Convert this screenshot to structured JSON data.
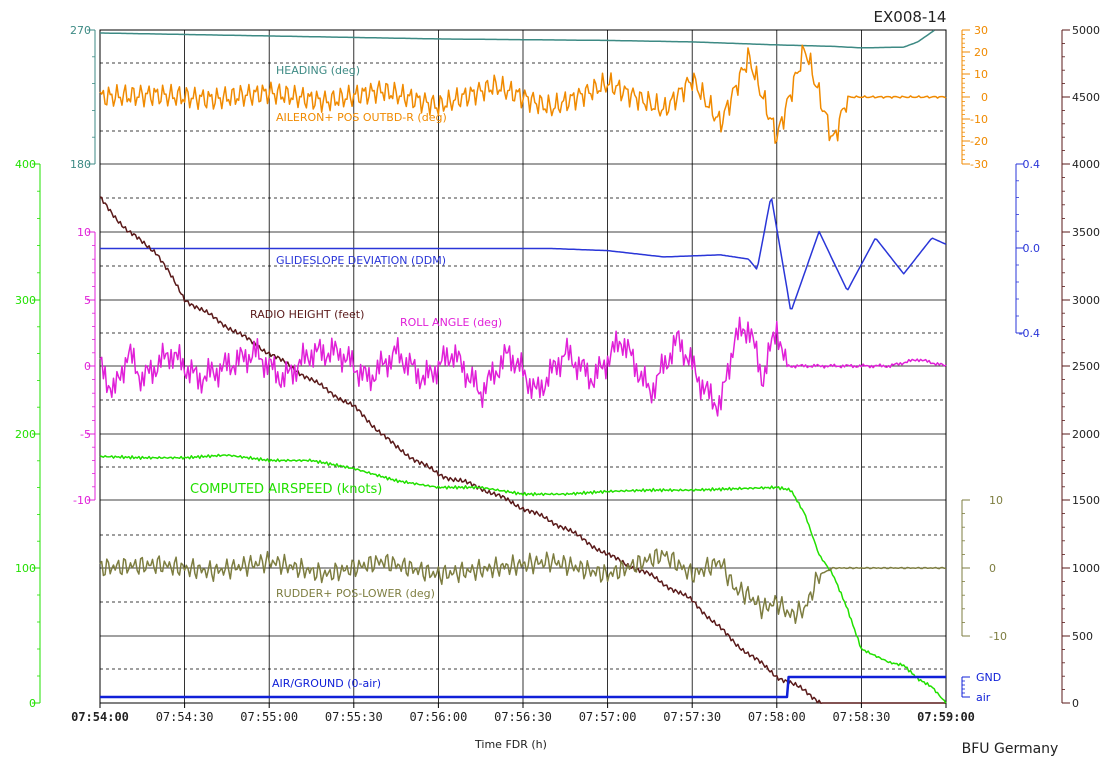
{
  "doc_id": "EX008-14",
  "footer": {
    "xlabel": "Time FDR (h)",
    "source": "BFU Germany"
  },
  "chart_data": {
    "type": "line",
    "x_ticks": [
      "07:54:00",
      "07:54:30",
      "07:55:00",
      "07:55:30",
      "07:56:00",
      "07:56:30",
      "07:57:00",
      "07:57:30",
      "07:58:00",
      "07:58:30",
      "07:59:00"
    ],
    "x_range_seconds": [
      0,
      300
    ],
    "series": [
      {
        "key": "heading",
        "name": "HEADING (deg)",
        "color": "#3d8a84",
        "axis_ticks": [
          "270",
          "180"
        ],
        "range": [
          180,
          270
        ],
        "points": [
          [
            0,
            268
          ],
          [
            15,
            267.5
          ],
          [
            30,
            267
          ],
          [
            60,
            266
          ],
          [
            90,
            265
          ],
          [
            120,
            264
          ],
          [
            150,
            263.5
          ],
          [
            180,
            263
          ],
          [
            210,
            262
          ],
          [
            240,
            260
          ],
          [
            260,
            259
          ],
          [
            270,
            258
          ],
          [
            285,
            258.5
          ],
          [
            290,
            262
          ],
          [
            296,
            270
          ]
        ]
      },
      {
        "key": "aileron",
        "name": "AILERON+ POS OUTBD-R (deg)",
        "color": "#f08a00",
        "axis_ticks": [
          "30",
          "20",
          "10",
          "0",
          "-10",
          "-20",
          "-30"
        ],
        "range": [
          -30,
          30
        ],
        "points": [
          [
            0,
            0
          ],
          [
            20,
            1
          ],
          [
            40,
            -1
          ],
          [
            60,
            2
          ],
          [
            80,
            -2
          ],
          [
            100,
            3
          ],
          [
            120,
            -4
          ],
          [
            140,
            5
          ],
          [
            160,
            -5
          ],
          [
            180,
            6
          ],
          [
            200,
            -6
          ],
          [
            210,
            8
          ],
          [
            220,
            -12
          ],
          [
            230,
            18
          ],
          [
            240,
            -18
          ],
          [
            250,
            22
          ],
          [
            260,
            -20
          ],
          [
            265,
            0
          ],
          [
            280,
            0
          ],
          [
            300,
            0
          ]
        ]
      },
      {
        "key": "glideslope",
        "name": "GLIDESLOPE DEVIATION (DDM)",
        "color": "#2a36d8",
        "axis_ticks": [
          "0.4",
          "0.0",
          "-0.4"
        ],
        "range": [
          -0.4,
          0.4
        ],
        "points": [
          [
            0,
            0.0
          ],
          [
            60,
            0.0
          ],
          [
            120,
            0.0
          ],
          [
            160,
            0.0
          ],
          [
            180,
            -0.01
          ],
          [
            200,
            -0.04
          ],
          [
            220,
            -0.03
          ],
          [
            230,
            -0.05
          ],
          [
            233,
            -0.1
          ],
          [
            238,
            0.25
          ],
          [
            245,
            -0.3
          ],
          [
            255,
            0.08
          ],
          [
            265,
            -0.2
          ],
          [
            275,
            0.05
          ],
          [
            285,
            -0.12
          ],
          [
            295,
            0.05
          ],
          [
            300,
            0.02
          ]
        ]
      },
      {
        "key": "radio_height",
        "name": "RADIO HEIGHT (feet)",
        "color": "#5a1a1a",
        "axis_ticks": [
          "5000",
          "4500",
          "4000",
          "3500",
          "3000",
          "2500",
          "2000",
          "1500",
          "1000",
          "500",
          "0"
        ],
        "range": [
          0,
          5000
        ],
        "points": [
          [
            0,
            3750
          ],
          [
            10,
            3500
          ],
          [
            20,
            3350
          ],
          [
            30,
            3000
          ],
          [
            45,
            2800
          ],
          [
            60,
            2600
          ],
          [
            75,
            2400
          ],
          [
            90,
            2200
          ],
          [
            105,
            1900
          ],
          [
            120,
            1700
          ],
          [
            135,
            1600
          ],
          [
            150,
            1450
          ],
          [
            165,
            1300
          ],
          [
            180,
            1100
          ],
          [
            195,
            950
          ],
          [
            210,
            760
          ],
          [
            225,
            450
          ],
          [
            240,
            200
          ],
          [
            250,
            90
          ],
          [
            256,
            0
          ],
          [
            260,
            0
          ],
          [
            300,
            0
          ]
        ]
      },
      {
        "key": "roll",
        "name": "ROLL ANGLE (deg)",
        "color": "#e020d8",
        "axis_ticks": [
          "10",
          "5",
          "0",
          "-5",
          "-10"
        ],
        "range": [
          -10,
          10
        ],
        "points": [
          [
            0,
            0
          ],
          [
            5,
            -2
          ],
          [
            10,
            1
          ],
          [
            15,
            -1
          ],
          [
            25,
            1
          ],
          [
            35,
            -1
          ],
          [
            45,
            0
          ],
          [
            55,
            1
          ],
          [
            65,
            -1
          ],
          [
            75,
            1
          ],
          [
            85,
            1
          ],
          [
            95,
            -1
          ],
          [
            105,
            1
          ],
          [
            115,
            -1
          ],
          [
            125,
            1
          ],
          [
            135,
            -2
          ],
          [
            145,
            1
          ],
          [
            155,
            -2
          ],
          [
            165,
            1
          ],
          [
            175,
            -1
          ],
          [
            185,
            2
          ],
          [
            195,
            -2
          ],
          [
            205,
            2
          ],
          [
            215,
            -2
          ],
          [
            220,
            -3
          ],
          [
            225,
            2
          ],
          [
            230,
            3
          ],
          [
            235,
            -1
          ],
          [
            240,
            3
          ],
          [
            243,
            0
          ],
          [
            250,
            0
          ],
          [
            260,
            0
          ],
          [
            270,
            0
          ],
          [
            280,
            0
          ],
          [
            290,
            0.5
          ],
          [
            300,
            0
          ]
        ]
      },
      {
        "key": "airspeed",
        "name": "COMPUTED AIRSPEED (knots)",
        "color": "#22e000",
        "axis_ticks": [
          "400",
          "300",
          "200",
          "100",
          "0"
        ],
        "range": [
          0,
          400
        ],
        "points": [
          [
            0,
            183
          ],
          [
            15,
            182
          ],
          [
            30,
            182
          ],
          [
            45,
            184
          ],
          [
            60,
            180
          ],
          [
            75,
            180
          ],
          [
            90,
            174
          ],
          [
            105,
            165
          ],
          [
            120,
            160
          ],
          [
            135,
            160
          ],
          [
            150,
            155
          ],
          [
            165,
            155
          ],
          [
            180,
            157
          ],
          [
            195,
            158
          ],
          [
            210,
            158
          ],
          [
            225,
            159
          ],
          [
            240,
            160
          ],
          [
            245,
            158
          ],
          [
            250,
            140
          ],
          [
            255,
            110
          ],
          [
            260,
            95
          ],
          [
            265,
            70
          ],
          [
            270,
            40
          ],
          [
            275,
            35
          ],
          [
            280,
            30
          ],
          [
            285,
            28
          ],
          [
            290,
            18
          ],
          [
            295,
            12
          ],
          [
            300,
            0
          ]
        ]
      },
      {
        "key": "rudder",
        "name": "RUDDER+ POS-LOWER (deg)",
        "color": "#7d7d40",
        "axis_ticks": [
          "10",
          "0",
          "-10"
        ],
        "range": [
          -10,
          10
        ],
        "points": [
          [
            0,
            0
          ],
          [
            20,
            0.5
          ],
          [
            40,
            -0.5
          ],
          [
            60,
            1
          ],
          [
            80,
            -1
          ],
          [
            100,
            1
          ],
          [
            120,
            -1
          ],
          [
            140,
            0
          ],
          [
            160,
            1
          ],
          [
            180,
            -1
          ],
          [
            200,
            2
          ],
          [
            210,
            -1
          ],
          [
            220,
            1
          ],
          [
            225,
            -3
          ],
          [
            230,
            -4
          ],
          [
            235,
            -6
          ],
          [
            240,
            -5
          ],
          [
            245,
            -7
          ],
          [
            250,
            -6
          ],
          [
            255,
            -1
          ],
          [
            260,
            0
          ],
          [
            280,
            0
          ],
          [
            300,
            0
          ]
        ]
      },
      {
        "key": "air_ground",
        "name": "AIR/GROUND (0-air)",
        "color": "#1020d8",
        "axis_ticks": [
          "GND",
          "air"
        ],
        "range": [
          0,
          1
        ],
        "points": [
          [
            0,
            0
          ],
          [
            244,
            0
          ],
          [
            244,
            1
          ],
          [
            300,
            1
          ]
        ]
      }
    ]
  }
}
